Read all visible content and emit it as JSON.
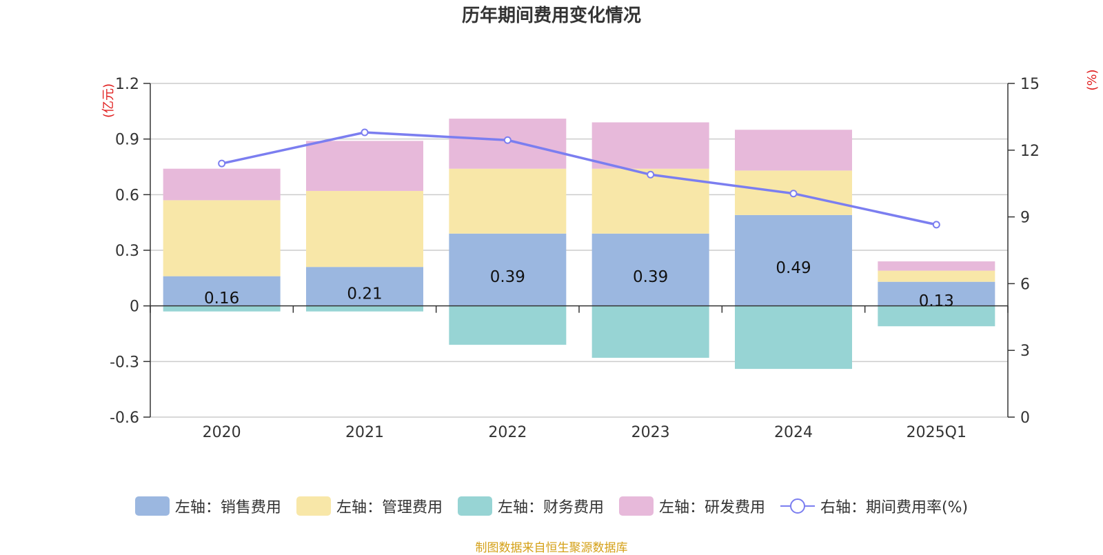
{
  "chart_data": {
    "type": "bar",
    "title": "历年期间费用变化情况",
    "categories": [
      "2020",
      "2021",
      "2022",
      "2023",
      "2024",
      "2025Q1"
    ],
    "left_axis": {
      "unit_label": "(亿元)",
      "ylim": [
        -0.6,
        1.2
      ],
      "ticks": [
        1.2,
        0.9,
        0.6,
        0.3,
        0,
        -0.3,
        -0.6
      ],
      "tick_labels": [
        "1.2",
        "0.9",
        "0.6",
        "0.3",
        "0",
        "-0.3",
        "-0.6"
      ]
    },
    "right_axis": {
      "unit_label": "(%)",
      "ylim": [
        0,
        15
      ],
      "ticks": [
        15,
        12,
        9,
        6,
        3,
        0
      ],
      "tick_labels": [
        "15",
        "12",
        "9",
        "6",
        "3",
        "0"
      ]
    },
    "series": [
      {
        "name": "左轴：销售费用",
        "color": "#9bb7e0",
        "values": [
          0.16,
          0.21,
          0.39,
          0.39,
          0.49,
          0.13
        ],
        "data_labels": [
          "0.16",
          "0.21",
          "0.39",
          "0.39",
          "0.49",
          "0.13"
        ]
      },
      {
        "name": "左轴：管理费用",
        "color": "#f8e7a8",
        "values": [
          0.41,
          0.41,
          0.35,
          0.35,
          0.24,
          0.06
        ]
      },
      {
        "name": "左轴：财务费用",
        "color": "#97d4d4",
        "values": [
          -0.03,
          -0.03,
          -0.21,
          -0.28,
          -0.34,
          -0.11
        ]
      },
      {
        "name": "左轴：研发费用",
        "color": "#e7b9da",
        "values": [
          0.17,
          0.27,
          0.27,
          0.25,
          0.22,
          0.05
        ]
      },
      {
        "name": "右轴：期间费用率(%)",
        "color": "#7b7ef0",
        "type": "line",
        "axis": "right",
        "values": [
          11.4,
          12.8,
          12.45,
          10.9,
          10.05,
          8.65
        ]
      }
    ],
    "grid": true,
    "legend_position": "bottom"
  },
  "source_note": "制图数据来自恒生聚源数据库"
}
